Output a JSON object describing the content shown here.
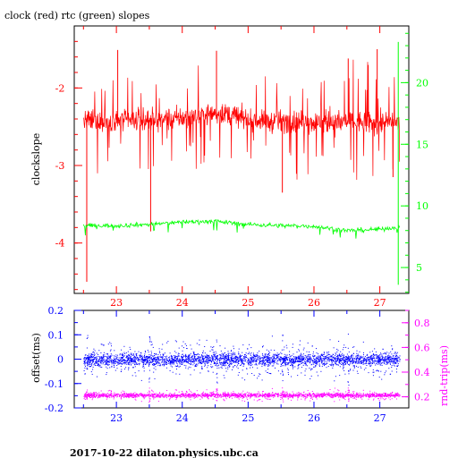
{
  "title": "clock (red) rtc (green) slopes",
  "footer": "2017-10-22  dilaton.physics.ubc.ca",
  "colors": {
    "red": "#ff0000",
    "green": "#00ff00",
    "blue": "#0000ff",
    "magenta": "#ff00ff",
    "black": "#000000"
  },
  "chart_data": [
    {
      "type": "line",
      "name": "top-panel",
      "xlim": [
        22.36,
        27.44
      ],
      "x_ticks": [
        "23",
        "24",
        "25",
        "26",
        "27"
      ],
      "ylabel": "clockslope",
      "ylim_left": [
        -4.65,
        -1.2
      ],
      "y_ticks_left": [
        "-2",
        "-3",
        "-4"
      ],
      "y_ticks_left_values": [
        -2,
        -3,
        -4
      ],
      "ylim_right": [
        2.9,
        24.6
      ],
      "y_ticks_right": [
        "5",
        "10",
        "15",
        "20"
      ],
      "y_ticks_right_values": [
        5,
        10,
        15,
        20
      ],
      "series": [
        {
          "color": "red",
          "axis": "left",
          "x_start": 22.5,
          "x_end": 27.3,
          "baseline": [
            [
              22.5,
              -2.43
            ],
            [
              23.0,
              -2.43
            ],
            [
              23.5,
              -2.42
            ],
            [
              24.0,
              -2.39
            ],
            [
              24.3,
              -2.35
            ],
            [
              24.5,
              -2.33
            ],
            [
              24.8,
              -2.36
            ],
            [
              25.0,
              -2.42
            ],
            [
              25.3,
              -2.44
            ],
            [
              25.5,
              -2.43
            ],
            [
              26.0,
              -2.44
            ],
            [
              26.5,
              -2.44
            ],
            [
              27.0,
              -2.45
            ],
            [
              27.3,
              -2.44
            ]
          ],
          "spikes": [
            [
              22.55,
              -4.5
            ],
            [
              23.02,
              -1.51
            ],
            [
              23.52,
              -3.85
            ],
            [
              24.52,
              -1.52
            ],
            [
              25.52,
              -3.35
            ],
            [
              26.52,
              -1.62
            ],
            [
              26.96,
              -1.5
            ],
            [
              27.2,
              -3.15
            ]
          ]
        },
        {
          "color": "green",
          "axis": "right",
          "x_start": 22.5,
          "x_end": 27.3,
          "baseline": [
            [
              22.5,
              8.4
            ],
            [
              23.0,
              8.4
            ],
            [
              23.5,
              8.5
            ],
            [
              24.0,
              8.7
            ],
            [
              24.5,
              8.75
            ],
            [
              25.0,
              8.5
            ],
            [
              25.5,
              8.4
            ],
            [
              26.0,
              8.35
            ],
            [
              26.5,
              8.0
            ],
            [
              27.0,
              8.1
            ],
            [
              27.3,
              8.3
            ]
          ],
          "spikes": [
            [
              27.28,
              23.3
            ],
            [
              27.28,
              3.6
            ]
          ]
        }
      ]
    },
    {
      "type": "scatter",
      "name": "bottom-panel",
      "xlim": [
        22.36,
        27.44
      ],
      "x_ticks": [
        "23",
        "24",
        "25",
        "26",
        "27"
      ],
      "ylabel": "offset(ms)",
      "ylim_left": [
        -0.2,
        0.2
      ],
      "y_ticks_left": [
        "0.2",
        "0.1",
        "0",
        "-0.1",
        "-0.2"
      ],
      "y_ticks_left_values": [
        0.2,
        0.1,
        0,
        -0.1,
        -0.2
      ],
      "ylabel_right": "rnd-trip(ms)",
      "ylim_right": [
        0.11,
        0.9
      ],
      "y_ticks_right": [
        "0.8",
        "0.6",
        "0.4",
        "0.2"
      ],
      "y_ticks_right_values": [
        0.8,
        0.6,
        0.4,
        0.2
      ],
      "series": [
        {
          "color": "blue",
          "axis": "left",
          "x_start": 22.5,
          "x_end": 27.3,
          "center": 0.0,
          "core_spread": 0.012,
          "outer_spread": 0.035
        },
        {
          "color": "magenta",
          "axis": "right",
          "x_start": 22.5,
          "x_end": 27.3,
          "center": 0.2155,
          "core_spread": 0.008,
          "outer_spread": 0.02
        }
      ]
    }
  ]
}
